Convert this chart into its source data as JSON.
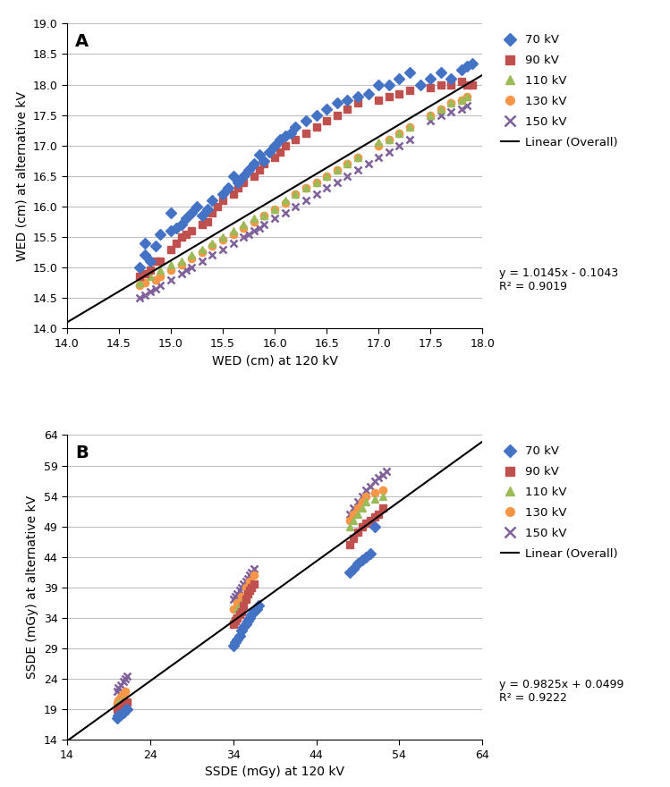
{
  "panel_A": {
    "title_label": "A",
    "xlabel": "WED (cm) at 120 kV",
    "ylabel": "WED (cm) at alternative kV",
    "xlim": [
      14.0,
      18.0
    ],
    "ylim": [
      14.0,
      19.0
    ],
    "xticks": [
      14.0,
      14.5,
      15.0,
      15.5,
      16.0,
      16.5,
      17.0,
      17.5,
      18.0
    ],
    "yticks": [
      14.0,
      14.5,
      15.0,
      15.5,
      16.0,
      16.5,
      17.0,
      17.5,
      18.0,
      18.5,
      19.0
    ],
    "line_eq": "y = 1.0145x - 0.1043",
    "r2": "R² = 0.9019",
    "line_slope": 1.0145,
    "line_intercept": -0.1043,
    "series": {
      "70kV": {
        "color": "#4472C4",
        "marker": "D",
        "x": [
          14.7,
          14.75,
          14.75,
          14.8,
          14.85,
          14.9,
          15.0,
          15.0,
          15.05,
          15.1,
          15.15,
          15.2,
          15.25,
          15.3,
          15.35,
          15.4,
          15.5,
          15.55,
          15.6,
          15.65,
          15.7,
          15.75,
          15.8,
          15.85,
          15.9,
          15.95,
          16.0,
          16.05,
          16.1,
          16.15,
          16.2,
          16.3,
          16.4,
          16.5,
          16.6,
          16.7,
          16.8,
          16.9,
          17.0,
          17.1,
          17.2,
          17.3,
          17.4,
          17.5,
          17.6,
          17.7,
          17.8,
          17.85,
          17.9
        ],
        "y": [
          15.0,
          15.2,
          15.4,
          15.1,
          15.35,
          15.55,
          15.6,
          15.9,
          15.65,
          15.7,
          15.8,
          15.9,
          16.0,
          15.85,
          15.95,
          16.1,
          16.2,
          16.3,
          16.5,
          16.4,
          16.5,
          16.6,
          16.7,
          16.85,
          16.75,
          16.9,
          17.0,
          17.1,
          17.15,
          17.2,
          17.3,
          17.4,
          17.5,
          17.6,
          17.7,
          17.75,
          17.8,
          17.85,
          18.0,
          18.0,
          18.1,
          18.2,
          18.0,
          18.1,
          18.2,
          18.1,
          18.25,
          18.3,
          18.35
        ]
      },
      "90kV": {
        "color": "#C0504D",
        "marker": "s",
        "x": [
          14.7,
          14.75,
          14.8,
          14.85,
          14.9,
          15.0,
          15.05,
          15.1,
          15.15,
          15.2,
          15.3,
          15.35,
          15.4,
          15.45,
          15.5,
          15.6,
          15.65,
          15.7,
          15.8,
          15.85,
          15.9,
          16.0,
          16.05,
          16.1,
          16.2,
          16.3,
          16.4,
          16.5,
          16.6,
          16.7,
          16.8,
          17.0,
          17.1,
          17.2,
          17.3,
          17.5,
          17.6,
          17.7,
          17.8,
          17.85,
          17.9
        ],
        "y": [
          14.85,
          14.9,
          14.95,
          15.1,
          15.1,
          15.3,
          15.4,
          15.5,
          15.55,
          15.6,
          15.7,
          15.75,
          15.9,
          16.0,
          16.1,
          16.2,
          16.3,
          16.4,
          16.5,
          16.6,
          16.7,
          16.8,
          16.9,
          17.0,
          17.1,
          17.2,
          17.3,
          17.4,
          17.5,
          17.6,
          17.7,
          17.75,
          17.8,
          17.85,
          17.9,
          17.95,
          18.0,
          18.0,
          18.05,
          18.0,
          18.0
        ]
      },
      "110kV": {
        "color": "#9BBB59",
        "marker": "^",
        "x": [
          14.7,
          14.8,
          14.9,
          15.0,
          15.1,
          15.2,
          15.3,
          15.4,
          15.5,
          15.6,
          15.7,
          15.8,
          15.9,
          16.0,
          16.1,
          16.2,
          16.3,
          16.4,
          16.5,
          16.6,
          16.7,
          16.8,
          17.0,
          17.1,
          17.2,
          17.3,
          17.5,
          17.6,
          17.7,
          17.8,
          17.85
        ],
        "y": [
          14.75,
          14.85,
          14.95,
          15.05,
          15.1,
          15.2,
          15.3,
          15.4,
          15.5,
          15.6,
          15.7,
          15.8,
          15.85,
          15.95,
          16.1,
          16.2,
          16.3,
          16.4,
          16.5,
          16.6,
          16.7,
          16.8,
          17.05,
          17.1,
          17.2,
          17.3,
          17.5,
          17.6,
          17.7,
          17.75,
          17.8
        ]
      },
      "130kV": {
        "color": "#F79646",
        "marker": "o",
        "x": [
          14.7,
          14.75,
          14.85,
          14.9,
          15.0,
          15.1,
          15.2,
          15.3,
          15.4,
          15.5,
          15.6,
          15.7,
          15.8,
          15.9,
          16.0,
          16.1,
          16.2,
          16.3,
          16.4,
          16.5,
          16.6,
          16.7,
          16.8,
          17.0,
          17.1,
          17.2,
          17.3,
          17.5,
          17.6,
          17.7,
          17.8,
          17.85
        ],
        "y": [
          14.7,
          14.75,
          14.8,
          14.85,
          14.95,
          15.05,
          15.15,
          15.25,
          15.35,
          15.45,
          15.55,
          15.65,
          15.75,
          15.85,
          15.95,
          16.05,
          16.2,
          16.3,
          16.4,
          16.5,
          16.6,
          16.7,
          16.8,
          17.0,
          17.1,
          17.2,
          17.3,
          17.5,
          17.6,
          17.7,
          17.75,
          17.8
        ]
      },
      "150kV": {
        "color": "#7F609B",
        "marker": "x",
        "x": [
          14.7,
          14.75,
          14.8,
          14.85,
          14.9,
          15.0,
          15.1,
          15.15,
          15.2,
          15.3,
          15.4,
          15.5,
          15.6,
          15.7,
          15.75,
          15.8,
          15.85,
          15.9,
          16.0,
          16.1,
          16.2,
          16.3,
          16.4,
          16.5,
          16.6,
          16.7,
          16.8,
          16.9,
          17.0,
          17.1,
          17.2,
          17.3,
          17.5,
          17.6,
          17.7,
          17.8,
          17.85
        ],
        "y": [
          14.5,
          14.55,
          14.6,
          14.65,
          14.7,
          14.8,
          14.9,
          14.95,
          15.0,
          15.1,
          15.2,
          15.3,
          15.4,
          15.5,
          15.55,
          15.6,
          15.65,
          15.7,
          15.8,
          15.9,
          16.0,
          16.1,
          16.2,
          16.3,
          16.4,
          16.5,
          16.6,
          16.7,
          16.8,
          16.9,
          17.0,
          17.1,
          17.4,
          17.5,
          17.55,
          17.6,
          17.65
        ]
      }
    }
  },
  "panel_B": {
    "title_label": "B",
    "xlabel": "SSDE (mGy) at 120 kV",
    "ylabel": "SSDE (mGy) at alternative kV",
    "xlim": [
      14,
      64
    ],
    "ylim": [
      14,
      64
    ],
    "xticks": [
      14,
      24,
      34,
      44,
      54,
      64
    ],
    "yticks": [
      14,
      19,
      24,
      29,
      34,
      39,
      44,
      49,
      54,
      59,
      64
    ],
    "line_eq": "y = 0.9825x + 0.0499",
    "r2": "R² = 0.9222",
    "line_slope": 0.9825,
    "line_intercept": 0.0499,
    "series": {
      "70kV": {
        "color": "#4472C4",
        "marker": "D",
        "x": [
          20.0,
          20.2,
          20.5,
          20.8,
          21.0,
          21.2,
          34.0,
          34.2,
          34.5,
          34.8,
          35.0,
          35.2,
          35.5,
          35.8,
          36.0,
          36.2,
          36.5,
          36.8,
          37.0,
          48.0,
          48.5,
          49.0,
          49.5,
          50.0,
          50.5,
          51.0
        ],
        "y": [
          17.5,
          18.0,
          18.2,
          18.5,
          18.8,
          19.0,
          29.5,
          30.0,
          30.5,
          31.0,
          32.0,
          32.5,
          33.0,
          33.5,
          34.0,
          34.5,
          35.0,
          35.5,
          36.0,
          41.5,
          42.0,
          43.0,
          43.5,
          44.0,
          44.5,
          49.0
        ]
      },
      "90kV": {
        "color": "#C0504D",
        "marker": "s",
        "x": [
          20.0,
          20.2,
          20.5,
          20.8,
          21.0,
          21.2,
          34.0,
          34.2,
          34.5,
          34.8,
          35.0,
          35.2,
          35.5,
          35.8,
          36.0,
          36.2,
          36.5,
          48.0,
          48.5,
          49.0,
          49.5,
          50.0,
          50.5,
          51.0,
          51.5,
          52.0
        ],
        "y": [
          19.0,
          19.2,
          19.5,
          19.8,
          20.0,
          20.2,
          33.0,
          33.5,
          34.0,
          34.5,
          35.0,
          36.0,
          37.0,
          38.0,
          38.5,
          39.0,
          39.5,
          46.0,
          47.0,
          48.0,
          49.0,
          49.5,
          50.0,
          50.5,
          51.0,
          52.0
        ]
      },
      "110kV": {
        "color": "#9BBB59",
        "marker": "^",
        "x": [
          20.0,
          20.2,
          20.5,
          20.8,
          34.0,
          34.5,
          35.0,
          35.5,
          36.0,
          48.0,
          48.5,
          49.0,
          49.5,
          50.0,
          51.0,
          52.0
        ],
        "y": [
          19.5,
          20.0,
          20.2,
          20.5,
          34.0,
          35.5,
          36.5,
          37.5,
          38.5,
          49.0,
          50.0,
          51.0,
          52.0,
          53.0,
          53.5,
          54.0
        ]
      },
      "130kV": {
        "color": "#F79646",
        "marker": "o",
        "x": [
          20.0,
          20.2,
          20.5,
          20.8,
          21.0,
          34.0,
          34.5,
          35.0,
          35.5,
          36.0,
          36.5,
          48.0,
          48.5,
          49.0,
          49.5,
          50.0,
          51.0,
          52.0
        ],
        "y": [
          20.0,
          20.5,
          21.0,
          21.5,
          22.0,
          35.5,
          36.5,
          37.5,
          39.0,
          40.0,
          41.0,
          50.0,
          51.0,
          52.0,
          53.0,
          54.0,
          54.5,
          55.0
        ]
      },
      "150kV": {
        "color": "#7F609B",
        "marker": "x",
        "x": [
          20.0,
          20.2,
          20.5,
          20.8,
          21.0,
          21.2,
          34.0,
          34.2,
          34.5,
          34.8,
          35.0,
          35.2,
          35.5,
          35.8,
          36.0,
          36.2,
          36.5,
          48.0,
          48.5,
          49.0,
          49.5,
          50.0,
          50.5,
          51.0,
          51.5,
          52.0,
          52.5
        ],
        "y": [
          22.0,
          22.5,
          23.0,
          23.5,
          24.0,
          24.5,
          37.0,
          37.5,
          38.0,
          38.5,
          39.0,
          39.5,
          40.0,
          40.5,
          41.0,
          41.5,
          42.0,
          51.0,
          52.0,
          53.0,
          54.0,
          55.0,
          55.5,
          56.5,
          57.0,
          57.5,
          58.0
        ]
      }
    }
  },
  "legend_labels": [
    "70 kV",
    "90 kV",
    "110 kV",
    "130 kV",
    "150 kV",
    "Linear (Overall)"
  ],
  "marker_size_A": 6,
  "marker_size_B": 6,
  "linewidth": 1.5,
  "bg_color": "#FFFFFF",
  "grid_color": "#C0C0C0"
}
